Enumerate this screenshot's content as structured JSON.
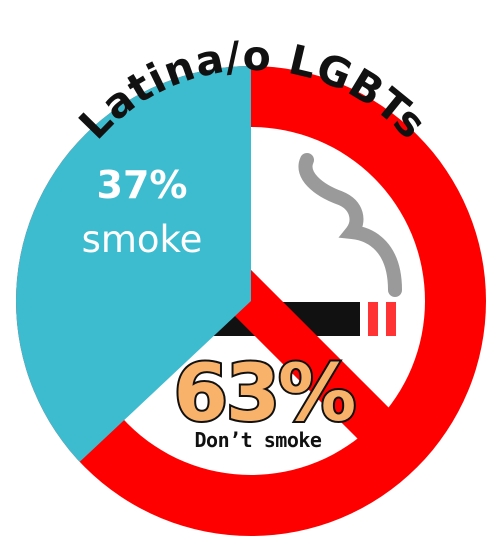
{
  "title": "Latina/o LGBTs",
  "colors": {
    "smoke": "#3dbcd0",
    "nonsmoke": "#ff0000",
    "cigarette_body": "#111111",
    "cigarette_ash_bands": "#ff3333",
    "smoke_trail": "#9a9a9a"
  },
  "chart_data": {
    "type": "pie",
    "title": "Latina/o LGBTs",
    "slices": [
      {
        "label": "smoke",
        "value": 37,
        "value_text": "37%",
        "color": "#3dbcd0"
      },
      {
        "label": "Don’t smoke",
        "value": 63,
        "value_text": "63%",
        "color": "#ff0000"
      }
    ]
  },
  "icons": {
    "no_smoking": "no-smoking-icon",
    "cigarette": "cigarette-icon",
    "smoke_trail": "smoke-trail-icon"
  }
}
